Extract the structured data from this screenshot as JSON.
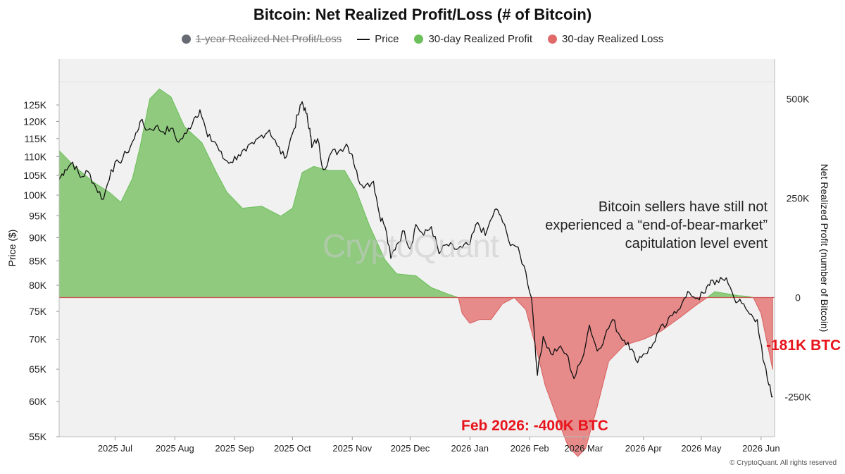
{
  "legend": {
    "items": [
      {
        "label": "1-year Realized Net Profit/Loss",
        "color": "#666b73",
        "disabled": true
      },
      {
        "label": "Price",
        "color": "#111111"
      },
      {
        "label": "30-day Realized Profit",
        "color": "#6cbf5a"
      },
      {
        "label": "30-day Realized Loss",
        "color": "#e06a6a"
      }
    ]
  },
  "annotation": {
    "text": "Bitcoin sellers have still not\nexperienced a “end-of-bear-market”\ncapitulation level event",
    "callout_feb": "Feb 2026: -400K BTC",
    "callout_latest": "-181K BTC"
  },
  "watermark": "CryptoQuant",
  "copyright": "© CryptoQuant. All rights reserved",
  "chart_data": {
    "type": "area",
    "title": "Bitcoin: Net Realized Profit/Loss (# of Bitcoin)",
    "ylabel": "Price ($)",
    "y2label": "Net Realized Profit (number of Bitcoin)",
    "y_scale": "log",
    "ylim": [
      55000,
      140000
    ],
    "y_ticks": [
      55000,
      60000,
      65000,
      70000,
      75000,
      80000,
      85000,
      90000,
      95000,
      100000,
      105000,
      110000,
      115000,
      120000,
      125000
    ],
    "y_tick_labels": [
      "55K",
      "60K",
      "65K",
      "70K",
      "75K",
      "80K",
      "85K",
      "90K",
      "95K",
      "100K",
      "105K",
      "110K",
      "115K",
      "120K",
      "125K"
    ],
    "y2lim": [
      -350000,
      600000
    ],
    "y2_ticks": [
      500000,
      250000,
      0,
      -250000
    ],
    "y2_tick_labels": [
      "500K",
      "250K",
      "0",
      "-250K"
    ],
    "x_range": [
      "2025-06-02",
      "2026-06-08"
    ],
    "x_ticks": [
      "2025-07-01",
      "2025-08-01",
      "2025-09-01",
      "2025-10-01",
      "2025-11-01",
      "2025-12-01",
      "2026-01-01",
      "2026-02-01",
      "2026-03-01",
      "2026-04-01",
      "2026-05-01",
      "2026-06-01"
    ],
    "x_tick_labels": [
      "2025 Jul",
      "2025 Aug",
      "2025 Sep",
      "2025 Oct",
      "2025 Nov",
      "2025 Dec",
      "2026 Jan",
      "2026 Feb",
      "2026 Mar",
      "2026 Apr",
      "2026 May",
      "2026 Jun"
    ],
    "grid": false,
    "legend_position": "top-center",
    "series": [
      {
        "name": "Price",
        "color": "#111111",
        "points": [
          [
            "2025-06-02",
            104000
          ],
          [
            "2025-06-05",
            106500
          ],
          [
            "2025-06-09",
            108500
          ],
          [
            "2025-06-13",
            104500
          ],
          [
            "2025-06-17",
            106000
          ],
          [
            "2025-06-21",
            102000
          ],
          [
            "2025-06-25",
            99000
          ],
          [
            "2025-06-29",
            106500
          ],
          [
            "2025-07-03",
            108500
          ],
          [
            "2025-07-07",
            111000
          ],
          [
            "2025-07-11",
            115000
          ],
          [
            "2025-07-14",
            120000
          ],
          [
            "2025-07-18",
            117500
          ],
          [
            "2025-07-22",
            118500
          ],
          [
            "2025-07-26",
            117000
          ],
          [
            "2025-07-30",
            118000
          ],
          [
            "2025-08-03",
            114000
          ],
          [
            "2025-08-07",
            116500
          ],
          [
            "2025-08-11",
            121000
          ],
          [
            "2025-08-14",
            123500
          ],
          [
            "2025-08-18",
            115500
          ],
          [
            "2025-08-22",
            114000
          ],
          [
            "2025-08-26",
            109500
          ],
          [
            "2025-08-30",
            108500
          ],
          [
            "2025-09-03",
            110500
          ],
          [
            "2025-09-07",
            111500
          ],
          [
            "2025-09-11",
            113500
          ],
          [
            "2025-09-15",
            116000
          ],
          [
            "2025-09-19",
            117500
          ],
          [
            "2025-09-23",
            113000
          ],
          [
            "2025-09-27",
            109500
          ],
          [
            "2025-10-01",
            116500
          ],
          [
            "2025-10-04",
            122000
          ],
          [
            "2025-10-06",
            126000
          ],
          [
            "2025-10-08",
            122500
          ],
          [
            "2025-10-10",
            118000
          ],
          [
            "2025-10-11",
            112500
          ],
          [
            "2025-10-14",
            115000
          ],
          [
            "2025-10-17",
            106500
          ],
          [
            "2025-10-21",
            111000
          ],
          [
            "2025-10-25",
            111500
          ],
          [
            "2025-10-29",
            113500
          ],
          [
            "2025-11-01",
            110500
          ],
          [
            "2025-11-04",
            104000
          ],
          [
            "2025-11-08",
            102500
          ],
          [
            "2025-11-12",
            103500
          ],
          [
            "2025-11-15",
            95500
          ],
          [
            "2025-11-18",
            92500
          ],
          [
            "2025-11-21",
            85500
          ],
          [
            "2025-11-24",
            88500
          ],
          [
            "2025-11-28",
            91500
          ],
          [
            "2025-12-01",
            87500
          ],
          [
            "2025-12-04",
            93000
          ],
          [
            "2025-12-08",
            90500
          ],
          [
            "2025-12-12",
            92500
          ],
          [
            "2025-12-16",
            86500
          ],
          [
            "2025-12-20",
            88500
          ],
          [
            "2025-12-24",
            87500
          ],
          [
            "2025-12-28",
            87800
          ],
          [
            "2026-01-01",
            88500
          ],
          [
            "2026-01-05",
            93500
          ],
          [
            "2026-01-09",
            90500
          ],
          [
            "2026-01-14",
            96500
          ],
          [
            "2026-01-17",
            95000
          ],
          [
            "2026-01-21",
            89500
          ],
          [
            "2026-01-25",
            88000
          ],
          [
            "2026-01-29",
            84000
          ],
          [
            "2026-02-02",
            77500
          ],
          [
            "2026-02-05",
            64000
          ],
          [
            "2026-02-08",
            70500
          ],
          [
            "2026-02-12",
            67500
          ],
          [
            "2026-02-16",
            68500
          ],
          [
            "2026-02-20",
            67500
          ],
          [
            "2026-02-24",
            63500
          ],
          [
            "2026-02-28",
            66500
          ],
          [
            "2026-03-04",
            72500
          ],
          [
            "2026-03-08",
            68000
          ],
          [
            "2026-03-12",
            70500
          ],
          [
            "2026-03-16",
            73500
          ],
          [
            "2026-03-20",
            70500
          ],
          [
            "2026-03-24",
            69500
          ],
          [
            "2026-03-28",
            66500
          ],
          [
            "2026-04-01",
            67500
          ],
          [
            "2026-04-05",
            68500
          ],
          [
            "2026-04-09",
            71500
          ],
          [
            "2026-04-13",
            72500
          ],
          [
            "2026-04-17",
            75000
          ],
          [
            "2026-04-21",
            76500
          ],
          [
            "2026-04-25",
            78500
          ],
          [
            "2026-04-29",
            77500
          ],
          [
            "2026-05-03",
            78500
          ],
          [
            "2026-05-06",
            81000
          ],
          [
            "2026-05-10",
            80500
          ],
          [
            "2026-05-14",
            81500
          ],
          [
            "2026-05-18",
            77500
          ],
          [
            "2026-05-22",
            76500
          ],
          [
            "2026-05-26",
            74500
          ],
          [
            "2026-05-30",
            73500
          ],
          [
            "2026-06-02",
            66500
          ],
          [
            "2026-06-05",
            62500
          ],
          [
            "2026-06-07",
            60800
          ]
        ]
      },
      {
        "name": "30-day Realized Profit",
        "color": "#6cbf5a",
        "points": [
          [
            "2025-06-02",
            370000
          ],
          [
            "2025-06-10",
            330000
          ],
          [
            "2025-06-20",
            290000
          ],
          [
            "2025-06-28",
            265000
          ],
          [
            "2025-07-04",
            240000
          ],
          [
            "2025-07-10",
            300000
          ],
          [
            "2025-07-14",
            380000
          ],
          [
            "2025-07-19",
            500000
          ],
          [
            "2025-07-24",
            525000
          ],
          [
            "2025-07-30",
            505000
          ],
          [
            "2025-08-06",
            430000
          ],
          [
            "2025-08-15",
            390000
          ],
          [
            "2025-08-22",
            320000
          ],
          [
            "2025-08-28",
            265000
          ],
          [
            "2025-09-05",
            225000
          ],
          [
            "2025-09-15",
            230000
          ],
          [
            "2025-09-25",
            205000
          ],
          [
            "2025-10-01",
            225000
          ],
          [
            "2025-10-06",
            315000
          ],
          [
            "2025-10-12",
            330000
          ],
          [
            "2025-10-20",
            320000
          ],
          [
            "2025-10-28",
            320000
          ],
          [
            "2025-11-03",
            270000
          ],
          [
            "2025-11-10",
            180000
          ],
          [
            "2025-11-18",
            95000
          ],
          [
            "2025-11-24",
            60000
          ],
          [
            "2025-12-04",
            55000
          ],
          [
            "2025-12-12",
            25000
          ],
          [
            "2025-12-20",
            10000
          ],
          [
            "2025-12-26",
            0
          ],
          [
            "2026-05-04",
            0
          ],
          [
            "2026-05-08",
            15000
          ],
          [
            "2026-05-14",
            10000
          ],
          [
            "2026-05-20",
            5000
          ],
          [
            "2026-05-25",
            3000
          ],
          [
            "2026-05-28",
            0
          ]
        ]
      },
      {
        "name": "30-day Realized Loss",
        "color": "#e06a6a",
        "points": [
          [
            "2025-12-26",
            0
          ],
          [
            "2025-12-28",
            -40000
          ],
          [
            "2026-01-01",
            -65000
          ],
          [
            "2026-01-06",
            -55000
          ],
          [
            "2026-01-12",
            -55000
          ],
          [
            "2026-01-18",
            -15000
          ],
          [
            "2026-01-24",
            0
          ],
          [
            "2026-01-30",
            -30000
          ],
          [
            "2026-02-05",
            -140000
          ],
          [
            "2026-02-09",
            -220000
          ],
          [
            "2026-02-15",
            -300000
          ],
          [
            "2026-02-21",
            -375000
          ],
          [
            "2026-02-26",
            -400000
          ],
          [
            "2026-03-02",
            -380000
          ],
          [
            "2026-03-08",
            -275000
          ],
          [
            "2026-03-14",
            -160000
          ],
          [
            "2026-03-22",
            -120000
          ],
          [
            "2026-04-01",
            -105000
          ],
          [
            "2026-04-10",
            -85000
          ],
          [
            "2026-04-20",
            -50000
          ],
          [
            "2026-04-28",
            -20000
          ],
          [
            "2026-05-04",
            0
          ],
          [
            "2026-05-28",
            0
          ],
          [
            "2026-06-01",
            -40000
          ],
          [
            "2026-06-04",
            -110000
          ],
          [
            "2026-06-07",
            -181000
          ]
        ]
      }
    ]
  }
}
